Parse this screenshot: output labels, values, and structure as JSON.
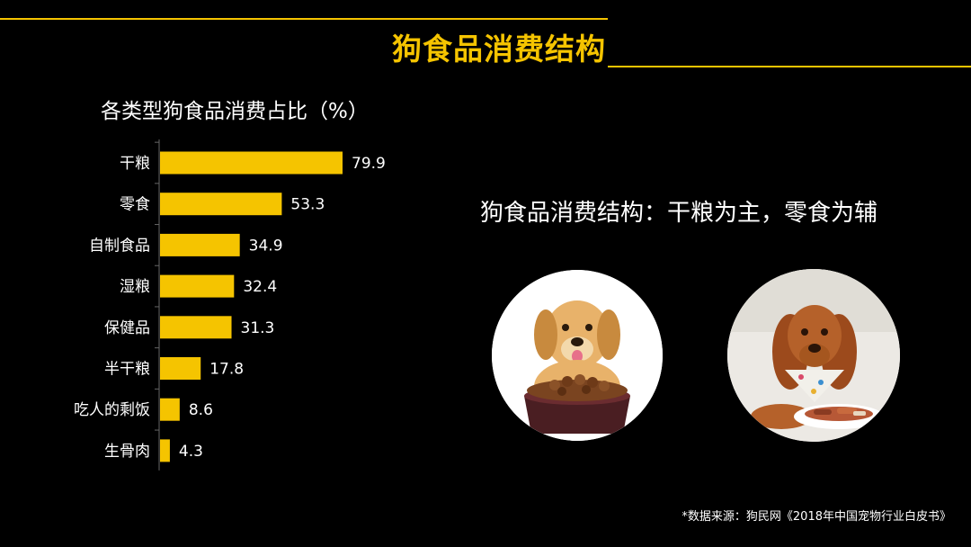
{
  "page": {
    "title": "狗食品消费结构",
    "headline": "狗食品消费结构：干粮为主，零食为辅",
    "source": "*数据来源：狗民网《2018年中国宠物行业白皮书》"
  },
  "photos": [
    {
      "subject": "puppy-with-dry-food-bowl"
    },
    {
      "subject": "dog-with-snack-plate"
    }
  ],
  "colors": {
    "accent": "#f5c400",
    "background": "#000000",
    "text": "#ffffff"
  },
  "chart_data": {
    "type": "bar",
    "orientation": "horizontal",
    "title": "各类型狗食品消费占比（%）",
    "categories": [
      "干粮",
      "零食",
      "自制食品",
      "湿粮",
      "保健品",
      "半干粮",
      "吃人的剩饭",
      "生骨肉"
    ],
    "values": [
      79.9,
      53.3,
      34.9,
      32.4,
      31.3,
      17.8,
      8.6,
      4.3
    ],
    "value_labels": [
      "79.9",
      "53.3",
      "34.9",
      "32.4",
      "31.3",
      "17.8",
      "8.6",
      "4.3"
    ],
    "xlim": [
      0,
      100
    ],
    "grid": false,
    "legend": "none",
    "bar_color": "#f5c400"
  }
}
